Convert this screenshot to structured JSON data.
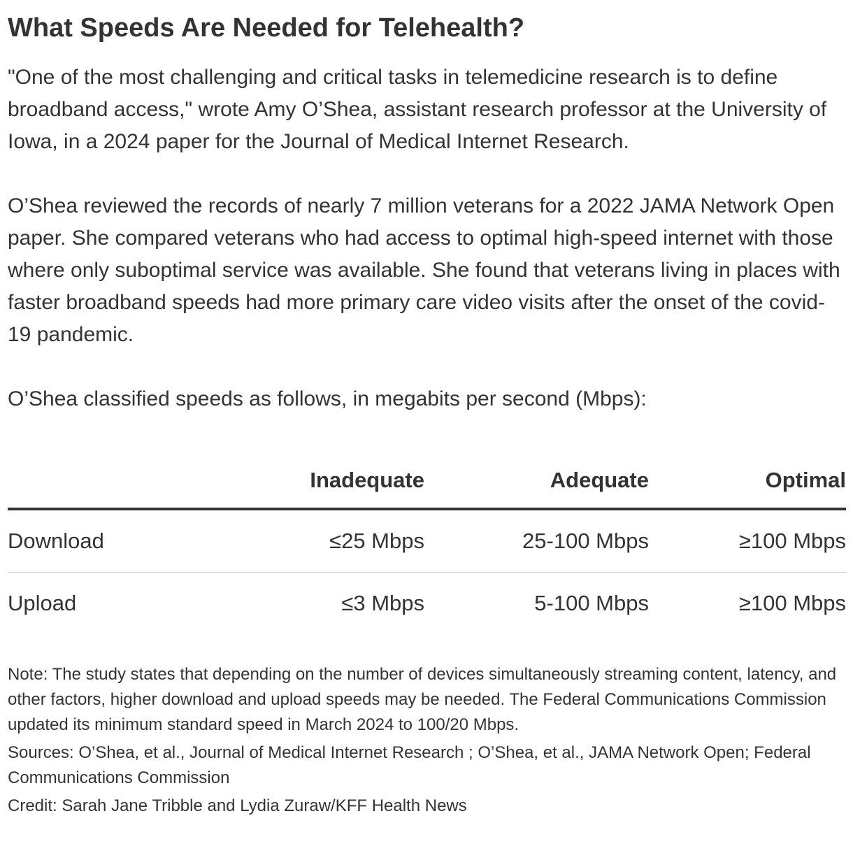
{
  "article": {
    "title": "What Speeds Are Needed for Telehealth?",
    "paragraphs": [
      "\"One of the most challenging and critical tasks in telemedicine research is to define broadband access,\" wrote Amy O’Shea, assistant research professor at the University of Iowa, in a 2024 paper for the Journal of Medical Internet Research.",
      "O’Shea reviewed the records of nearly 7 million veterans for a 2022 JAMA Network Open paper. She compared veterans who had access to optimal high-speed internet with those where only suboptimal service was available. She found that veterans living in places with faster broadband speeds had more primary care video visits after the onset of the covid-19 pandemic.",
      "O’Shea classified speeds as follows, in megabits per second (Mbps):"
    ]
  },
  "table": {
    "headers": [
      "",
      "Inadequate",
      "Adequate",
      "Optimal"
    ],
    "rows": [
      {
        "label": "Download",
        "inadequate": "≤25 Mbps",
        "adequate": "25-100 Mbps",
        "optimal": "≥100 Mbps"
      },
      {
        "label": "Upload",
        "inadequate": "≤3 Mbps",
        "adequate": "5-100 Mbps",
        "optimal": "≥100 Mbps"
      }
    ]
  },
  "footer": {
    "note": "Note: The study states that depending on the number of devices simultaneously streaming content, latency, and other factors, higher download and upload speeds may be needed. The Federal Communications Commission updated its minimum standard speed in March 2024 to 100/20 Mbps.",
    "sources": "Sources: O’Shea, et al., Journal of Medical Internet Research ; O’Shea, et al., JAMA Network Open; Federal Communications Commission",
    "credit": "Credit: Sarah Jane Tribble and Lydia Zuraw/KFF Health News"
  },
  "colors": {
    "text": "#333333",
    "header_rule": "#333333",
    "row_rule": "#cccccc",
    "background": "#ffffff"
  }
}
